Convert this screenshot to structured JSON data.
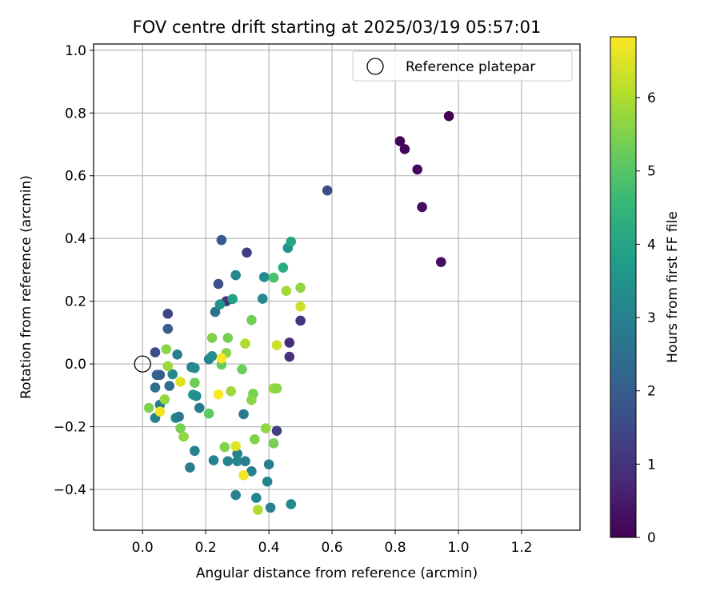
{
  "chart_data": {
    "type": "scatter",
    "title": "FOV centre drift starting at 2025/03/19 05:57:01",
    "xlabel": "Angular distance from reference (arcmin)",
    "ylabel": "Rotation from reference (arcmin)",
    "xlim": [
      -0.155,
      1.385
    ],
    "ylim": [
      -0.53,
      1.02
    ],
    "xticks": [
      0.0,
      0.2,
      0.4,
      0.6,
      0.8,
      1.0,
      1.2
    ],
    "xtick_labels": [
      "0.0",
      "0.2",
      "0.4",
      "0.6",
      "0.8",
      "1.0",
      "1.2"
    ],
    "yticks": [
      -0.4,
      -0.2,
      0.0,
      0.2,
      0.4,
      0.6,
      0.8,
      1.0
    ],
    "ytick_labels": [
      "−0.4",
      "−0.2",
      "0.0",
      "0.2",
      "0.4",
      "0.6",
      "0.8",
      "1.0"
    ],
    "grid": true,
    "legend": {
      "location": "upper right",
      "entries": [
        "Reference platepar"
      ]
    },
    "reference_point": {
      "x": 0.0,
      "y": 0.0,
      "label": "Reference platepar",
      "marker": "open circle"
    },
    "colorbar": {
      "label": "Hours from first FF file",
      "colormap": "viridis",
      "range": [
        0,
        6.83
      ],
      "ticks": [
        0,
        1,
        2,
        3,
        4,
        5,
        6
      ],
      "tick_labels": [
        "0",
        "1",
        "2",
        "3",
        "4",
        "5",
        "6"
      ]
    },
    "colormap_stops": [
      "#440154",
      "#482878",
      "#3e4a89",
      "#31688e",
      "#26828e",
      "#1f9e89",
      "#35b779",
      "#6ece58",
      "#b5de2b",
      "#fde725"
    ],
    "points": [
      {
        "x": 0.97,
        "y": 0.79,
        "h": 0.0
      },
      {
        "x": 0.815,
        "y": 0.71,
        "h": 0.05
      },
      {
        "x": 0.83,
        "y": 0.685,
        "h": 0.1
      },
      {
        "x": 0.87,
        "y": 0.62,
        "h": 0.15
      },
      {
        "x": 0.885,
        "y": 0.5,
        "h": 0.2
      },
      {
        "x": 0.945,
        "y": 0.325,
        "h": 0.25
      },
      {
        "x": 0.585,
        "y": 0.553,
        "h": 1.6
      },
      {
        "x": 0.33,
        "y": 0.355,
        "h": 1.2
      },
      {
        "x": 0.5,
        "y": 0.138,
        "h": 1.0
      },
      {
        "x": 0.465,
        "y": 0.068,
        "h": 0.9
      },
      {
        "x": 0.465,
        "y": 0.023,
        "h": 0.95
      },
      {
        "x": 0.425,
        "y": -0.213,
        "h": 1.3
      },
      {
        "x": 0.25,
        "y": 0.395,
        "h": 1.9
      },
      {
        "x": 0.24,
        "y": 0.255,
        "h": 1.7
      },
      {
        "x": 0.265,
        "y": 0.2,
        "h": 1.0
      },
      {
        "x": 0.08,
        "y": 0.16,
        "h": 1.4
      },
      {
        "x": 0.08,
        "y": 0.112,
        "h": 2.0
      },
      {
        "x": 0.04,
        "y": 0.037,
        "h": 1.6
      },
      {
        "x": 0.045,
        "y": -0.035,
        "h": 2.1
      },
      {
        "x": 0.055,
        "y": -0.035,
        "h": 2.0
      },
      {
        "x": 0.04,
        "y": -0.075,
        "h": 2.5
      },
      {
        "x": 0.085,
        "y": -0.07,
        "h": 2.4
      },
      {
        "x": 0.055,
        "y": -0.13,
        "h": 2.9
      },
      {
        "x": 0.04,
        "y": -0.172,
        "h": 3.0
      },
      {
        "x": 0.11,
        "y": 0.03,
        "h": 2.9
      },
      {
        "x": 0.095,
        "y": -0.033,
        "h": 3.2
      },
      {
        "x": 0.105,
        "y": -0.172,
        "h": 3.2
      },
      {
        "x": 0.115,
        "y": -0.168,
        "h": 2.8
      },
      {
        "x": 0.155,
        "y": -0.01,
        "h": 3.0
      },
      {
        "x": 0.165,
        "y": -0.013,
        "h": 3.3
      },
      {
        "x": 0.16,
        "y": -0.098,
        "h": 3.6
      },
      {
        "x": 0.17,
        "y": -0.102,
        "h": 3.4
      },
      {
        "x": 0.18,
        "y": -0.14,
        "h": 2.8
      },
      {
        "x": 0.165,
        "y": -0.277,
        "h": 3.0
      },
      {
        "x": 0.15,
        "y": -0.33,
        "h": 2.9
      },
      {
        "x": 0.21,
        "y": 0.015,
        "h": 3.1
      },
      {
        "x": 0.22,
        "y": 0.025,
        "h": 3.3
      },
      {
        "x": 0.23,
        "y": 0.166,
        "h": 2.6
      },
      {
        "x": 0.245,
        "y": 0.19,
        "h": 3.5
      },
      {
        "x": 0.285,
        "y": 0.207,
        "h": 3.9
      },
      {
        "x": 0.295,
        "y": 0.283,
        "h": 3.2
      },
      {
        "x": 0.38,
        "y": 0.208,
        "h": 3.2
      },
      {
        "x": 0.385,
        "y": 0.277,
        "h": 3.3
      },
      {
        "x": 0.415,
        "y": 0.275,
        "h": 4.8
      },
      {
        "x": 0.445,
        "y": 0.307,
        "h": 4.2
      },
      {
        "x": 0.46,
        "y": 0.37,
        "h": 3.5
      },
      {
        "x": 0.47,
        "y": 0.39,
        "h": 4.0
      },
      {
        "x": 0.32,
        "y": -0.16,
        "h": 2.8
      },
      {
        "x": 0.225,
        "y": -0.307,
        "h": 3.0
      },
      {
        "x": 0.27,
        "y": -0.31,
        "h": 3.1
      },
      {
        "x": 0.3,
        "y": -0.286,
        "h": 3.0
      },
      {
        "x": 0.3,
        "y": -0.31,
        "h": 3.2
      },
      {
        "x": 0.325,
        "y": -0.31,
        "h": 2.9
      },
      {
        "x": 0.345,
        "y": -0.342,
        "h": 3.0
      },
      {
        "x": 0.4,
        "y": -0.32,
        "h": 3.0
      },
      {
        "x": 0.395,
        "y": -0.375,
        "h": 3.1
      },
      {
        "x": 0.295,
        "y": -0.418,
        "h": 3.0
      },
      {
        "x": 0.36,
        "y": -0.427,
        "h": 3.1
      },
      {
        "x": 0.405,
        "y": -0.458,
        "h": 3.0
      },
      {
        "x": 0.47,
        "y": -0.447,
        "h": 3.2
      },
      {
        "x": 0.075,
        "y": 0.047,
        "h": 5.6
      },
      {
        "x": 0.08,
        "y": -0.007,
        "h": 5.8
      },
      {
        "x": 0.02,
        "y": -0.14,
        "h": 5.5
      },
      {
        "x": 0.07,
        "y": -0.113,
        "h": 5.7
      },
      {
        "x": 0.12,
        "y": -0.205,
        "h": 5.4
      },
      {
        "x": 0.13,
        "y": -0.232,
        "h": 5.7
      },
      {
        "x": 0.165,
        "y": -0.06,
        "h": 5.3
      },
      {
        "x": 0.21,
        "y": -0.158,
        "h": 5.1
      },
      {
        "x": 0.22,
        "y": 0.083,
        "h": 5.5
      },
      {
        "x": 0.27,
        "y": 0.083,
        "h": 5.4
      },
      {
        "x": 0.265,
        "y": 0.035,
        "h": 5.6
      },
      {
        "x": 0.25,
        "y": -0.002,
        "h": 5.2
      },
      {
        "x": 0.28,
        "y": -0.087,
        "h": 5.8
      },
      {
        "x": 0.26,
        "y": -0.265,
        "h": 5.5
      },
      {
        "x": 0.315,
        "y": -0.017,
        "h": 5.3
      },
      {
        "x": 0.325,
        "y": 0.065,
        "h": 6.0
      },
      {
        "x": 0.345,
        "y": 0.14,
        "h": 5.3
      },
      {
        "x": 0.35,
        "y": -0.095,
        "h": 5.4
      },
      {
        "x": 0.345,
        "y": -0.115,
        "h": 5.6
      },
      {
        "x": 0.355,
        "y": -0.24,
        "h": 5.5
      },
      {
        "x": 0.365,
        "y": -0.465,
        "h": 6.0
      },
      {
        "x": 0.39,
        "y": -0.205,
        "h": 5.7
      },
      {
        "x": 0.415,
        "y": -0.078,
        "h": 5.8
      },
      {
        "x": 0.425,
        "y": -0.078,
        "h": 5.6
      },
      {
        "x": 0.415,
        "y": -0.253,
        "h": 5.4
      },
      {
        "x": 0.425,
        "y": 0.06,
        "h": 6.3
      },
      {
        "x": 0.455,
        "y": 0.233,
        "h": 5.9
      },
      {
        "x": 0.5,
        "y": 0.243,
        "h": 5.7
      },
      {
        "x": 0.5,
        "y": 0.183,
        "h": 6.3
      },
      {
        "x": 0.12,
        "y": -0.057,
        "h": 6.5
      },
      {
        "x": 0.055,
        "y": -0.152,
        "h": 6.7
      },
      {
        "x": 0.24,
        "y": -0.097,
        "h": 6.8
      },
      {
        "x": 0.25,
        "y": 0.018,
        "h": 6.8
      },
      {
        "x": 0.295,
        "y": -0.262,
        "h": 6.5
      },
      {
        "x": 0.32,
        "y": -0.355,
        "h": 6.7
      }
    ]
  }
}
